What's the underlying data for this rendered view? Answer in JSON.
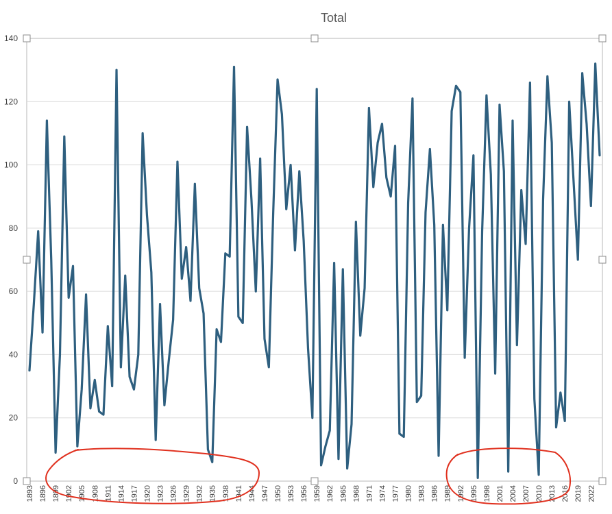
{
  "chart_data": {
    "type": "line",
    "title": "Total",
    "xlabel": "",
    "ylabel": "",
    "ylim": [
      0,
      140
    ],
    "yticks": [
      0,
      20,
      40,
      60,
      80,
      100,
      120,
      140
    ],
    "grid": true,
    "legend": "none",
    "x_start": 1893,
    "x_end": 2024,
    "x_tick_step": 3,
    "series": [
      {
        "color": "#2e5f7f",
        "values": [
          35,
          56,
          79,
          47,
          114,
          70,
          9,
          40,
          109,
          58,
          68,
          11,
          29,
          59,
          23,
          32,
          22,
          21,
          49,
          30,
          130,
          36,
          65,
          33,
          29,
          40,
          110,
          84,
          66,
          13,
          56,
          24,
          38,
          51,
          101,
          64,
          74,
          57,
          94,
          61,
          53,
          10,
          6,
          48,
          44,
          72,
          71,
          131,
          52,
          50,
          112,
          89,
          60,
          102,
          45,
          36,
          85,
          127,
          116,
          86,
          100,
          73,
          98,
          76,
          42,
          20,
          124,
          5,
          11,
          16,
          69,
          7,
          67,
          4,
          18,
          82,
          46,
          61,
          118,
          93,
          107,
          113,
          96,
          90,
          106,
          15,
          14,
          88,
          121,
          25,
          27,
          85,
          105,
          81,
          8,
          81,
          54,
          117,
          125,
          123,
          39,
          80,
          103,
          1,
          79,
          122,
          97,
          34,
          119,
          98,
          3,
          114,
          43,
          92,
          75,
          126,
          26,
          2,
          89,
          128,
          107,
          17,
          28,
          19,
          120,
          95,
          70,
          129,
          113,
          87,
          132,
          103
        ]
      }
    ],
    "annotations": [
      {
        "shape": "hand-drawn-ellipse",
        "color": "#e0301e"
      },
      {
        "shape": "hand-drawn-ellipse",
        "color": "#e0301e"
      }
    ]
  }
}
